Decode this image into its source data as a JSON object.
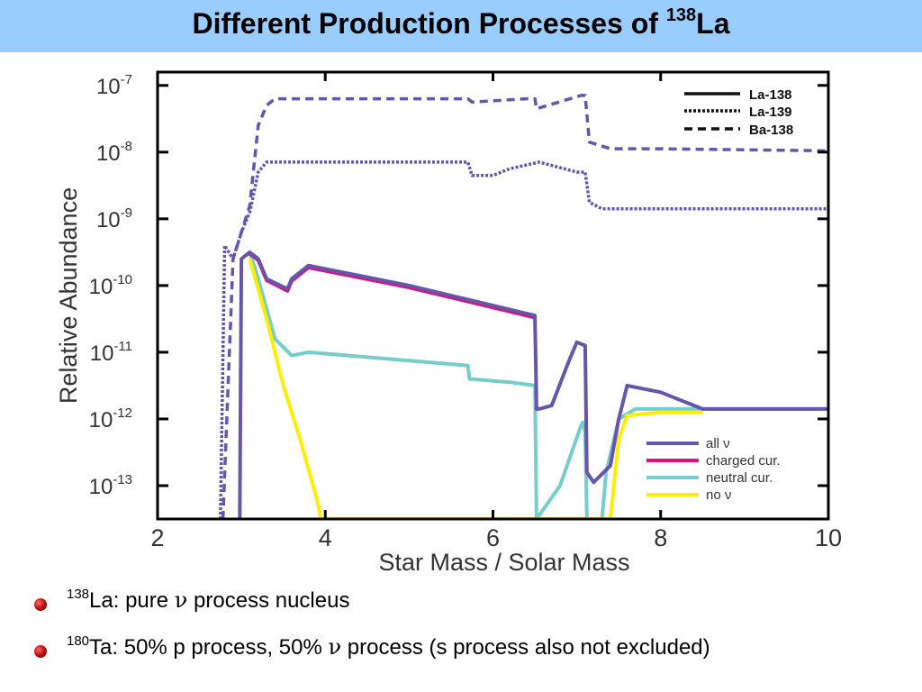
{
  "title": {
    "text": "Different Production Processes of ",
    "sup": "138",
    "tail": "La"
  },
  "bullets": [
    {
      "sup": "138",
      "pre": "La: pure ",
      "nu": "ν",
      "post": " process nucleus"
    },
    {
      "sup": "180",
      "pre": "Ta: 50% p process, 50% ",
      "nu": "ν",
      "post": " process (s process also not excluded)"
    }
  ],
  "colors": {
    "title_bg": "#99ccff",
    "all_nu": "#6655aa",
    "charged": "#dd1177",
    "neutral": "#77cccc",
    "no_nu": "#ffee00",
    "bullet": "#b00000"
  },
  "chart_data": {
    "type": "line",
    "xlabel": "Star Mass / Solar Mass",
    "ylabel": "Relative Abundance",
    "xlim": [
      2,
      10
    ],
    "ylim_log10": [
      -13.5,
      -6.8
    ],
    "yscale": "log",
    "x_ticks": [
      "2",
      "4",
      "6",
      "8",
      "10"
    ],
    "y_ticks": [
      {
        "base": "10",
        "exp": "-7"
      },
      {
        "base": "10",
        "exp": "-8"
      },
      {
        "base": "10",
        "exp": "-9"
      },
      {
        "base": "10",
        "exp": "-10"
      },
      {
        "base": "10",
        "exp": "-11"
      },
      {
        "base": "10",
        "exp": "-12"
      },
      {
        "base": "10",
        "exp": "-13"
      }
    ],
    "legend_isotopes": [
      "La-138",
      "La-139",
      "Ba-138"
    ],
    "legend_processes": [
      "all ν",
      "charged cur.",
      "neutral cur.",
      "no ν"
    ],
    "series": [
      {
        "name": "Ba-138",
        "style": "dash",
        "color": "#6655aa",
        "x": [
          2.78,
          2.9,
          3.0,
          3.1,
          3.2,
          3.3,
          3.4,
          3.6,
          5.7,
          5.75,
          6.4,
          6.5,
          6.52,
          7.05,
          7.1,
          7.15,
          7.4,
          8.0,
          10.0
        ],
        "log10y": [
          -13.5,
          -9.6,
          -9.2,
          -8.8,
          -7.6,
          -7.3,
          -7.2,
          -7.2,
          -7.2,
          -7.25,
          -7.2,
          -7.2,
          -7.35,
          -7.15,
          -7.15,
          -7.85,
          -7.95,
          -7.95,
          -7.98
        ]
      },
      {
        "name": "La-139",
        "style": "dotted",
        "color": "#6655aa",
        "x": [
          2.75,
          2.8,
          2.9,
          3.0,
          3.1,
          3.2,
          3.3,
          5.7,
          5.75,
          6.0,
          6.2,
          6.55,
          7.0,
          7.1,
          7.15,
          7.3,
          8.0,
          10.0
        ],
        "log10y": [
          -13.5,
          -9.4,
          -9.6,
          -9.2,
          -8.9,
          -8.3,
          -8.15,
          -8.15,
          -8.35,
          -8.35,
          -8.25,
          -8.15,
          -8.3,
          -8.3,
          -8.75,
          -8.85,
          -8.85,
          -8.85
        ]
      },
      {
        "name": "La-138",
        "style": "solid",
        "color": "#6655aa",
        "x": [
          2.98,
          3.0,
          3.1,
          3.2,
          3.3,
          3.55,
          3.6,
          3.8,
          4.0,
          5.0,
          6.0,
          6.5,
          6.52,
          6.55,
          6.7,
          6.9,
          7.0,
          7.1,
          7.12,
          7.2,
          7.4,
          7.5,
          7.6,
          8.0,
          8.5,
          10.0
        ],
        "log10y": [
          -13.5,
          -9.6,
          -9.5,
          -9.6,
          -9.9,
          -10.05,
          -9.9,
          -9.7,
          -9.75,
          -10.0,
          -10.3,
          -10.45,
          -11.85,
          -11.85,
          -11.8,
          -11.15,
          -10.85,
          -10.9,
          -12.8,
          -12.95,
          -12.7,
          -12.0,
          -11.5,
          -11.6,
          -11.85,
          -11.85
        ]
      },
      {
        "name": "charged cur.",
        "style": "solid",
        "color": "#dd1177",
        "x": [
          3.1,
          3.2,
          3.3,
          3.55,
          3.6,
          3.8,
          4.0,
          5.0,
          6.0,
          6.5
        ],
        "log10y": [
          -9.52,
          -9.62,
          -9.92,
          -10.08,
          -9.93,
          -9.73,
          -9.78,
          -10.03,
          -10.33,
          -10.48
        ]
      },
      {
        "name": "neutral cur.",
        "style": "solid",
        "color": "#77cccc",
        "x": [
          3.1,
          3.2,
          3.4,
          3.6,
          3.8,
          5.7,
          5.72,
          6.2,
          6.5,
          6.52,
          6.8,
          7.05,
          7.07,
          7.1,
          7.12,
          7.3,
          7.35,
          7.5,
          7.7,
          8.5,
          10.0
        ],
        "log10y": [
          -9.5,
          -9.9,
          -10.8,
          -11.05,
          -11.0,
          -11.2,
          -11.4,
          -11.45,
          -11.5,
          -13.5,
          -13.0,
          -12.1,
          -12.05,
          -12.2,
          -13.5,
          -13.5,
          -12.8,
          -12.0,
          -11.85,
          -11.85,
          -11.85
        ]
      },
      {
        "name": "no ν",
        "style": "solid",
        "color": "#ffee00",
        "x": [
          3.1,
          3.3,
          3.5,
          3.7,
          3.9,
          3.95,
          7.4,
          7.5,
          7.6,
          8.0,
          8.5
        ],
        "log10y": [
          -9.6,
          -10.5,
          -11.5,
          -12.3,
          -13.2,
          -13.5,
          -13.5,
          -12.3,
          -11.95,
          -11.9,
          -11.9
        ]
      }
    ]
  }
}
